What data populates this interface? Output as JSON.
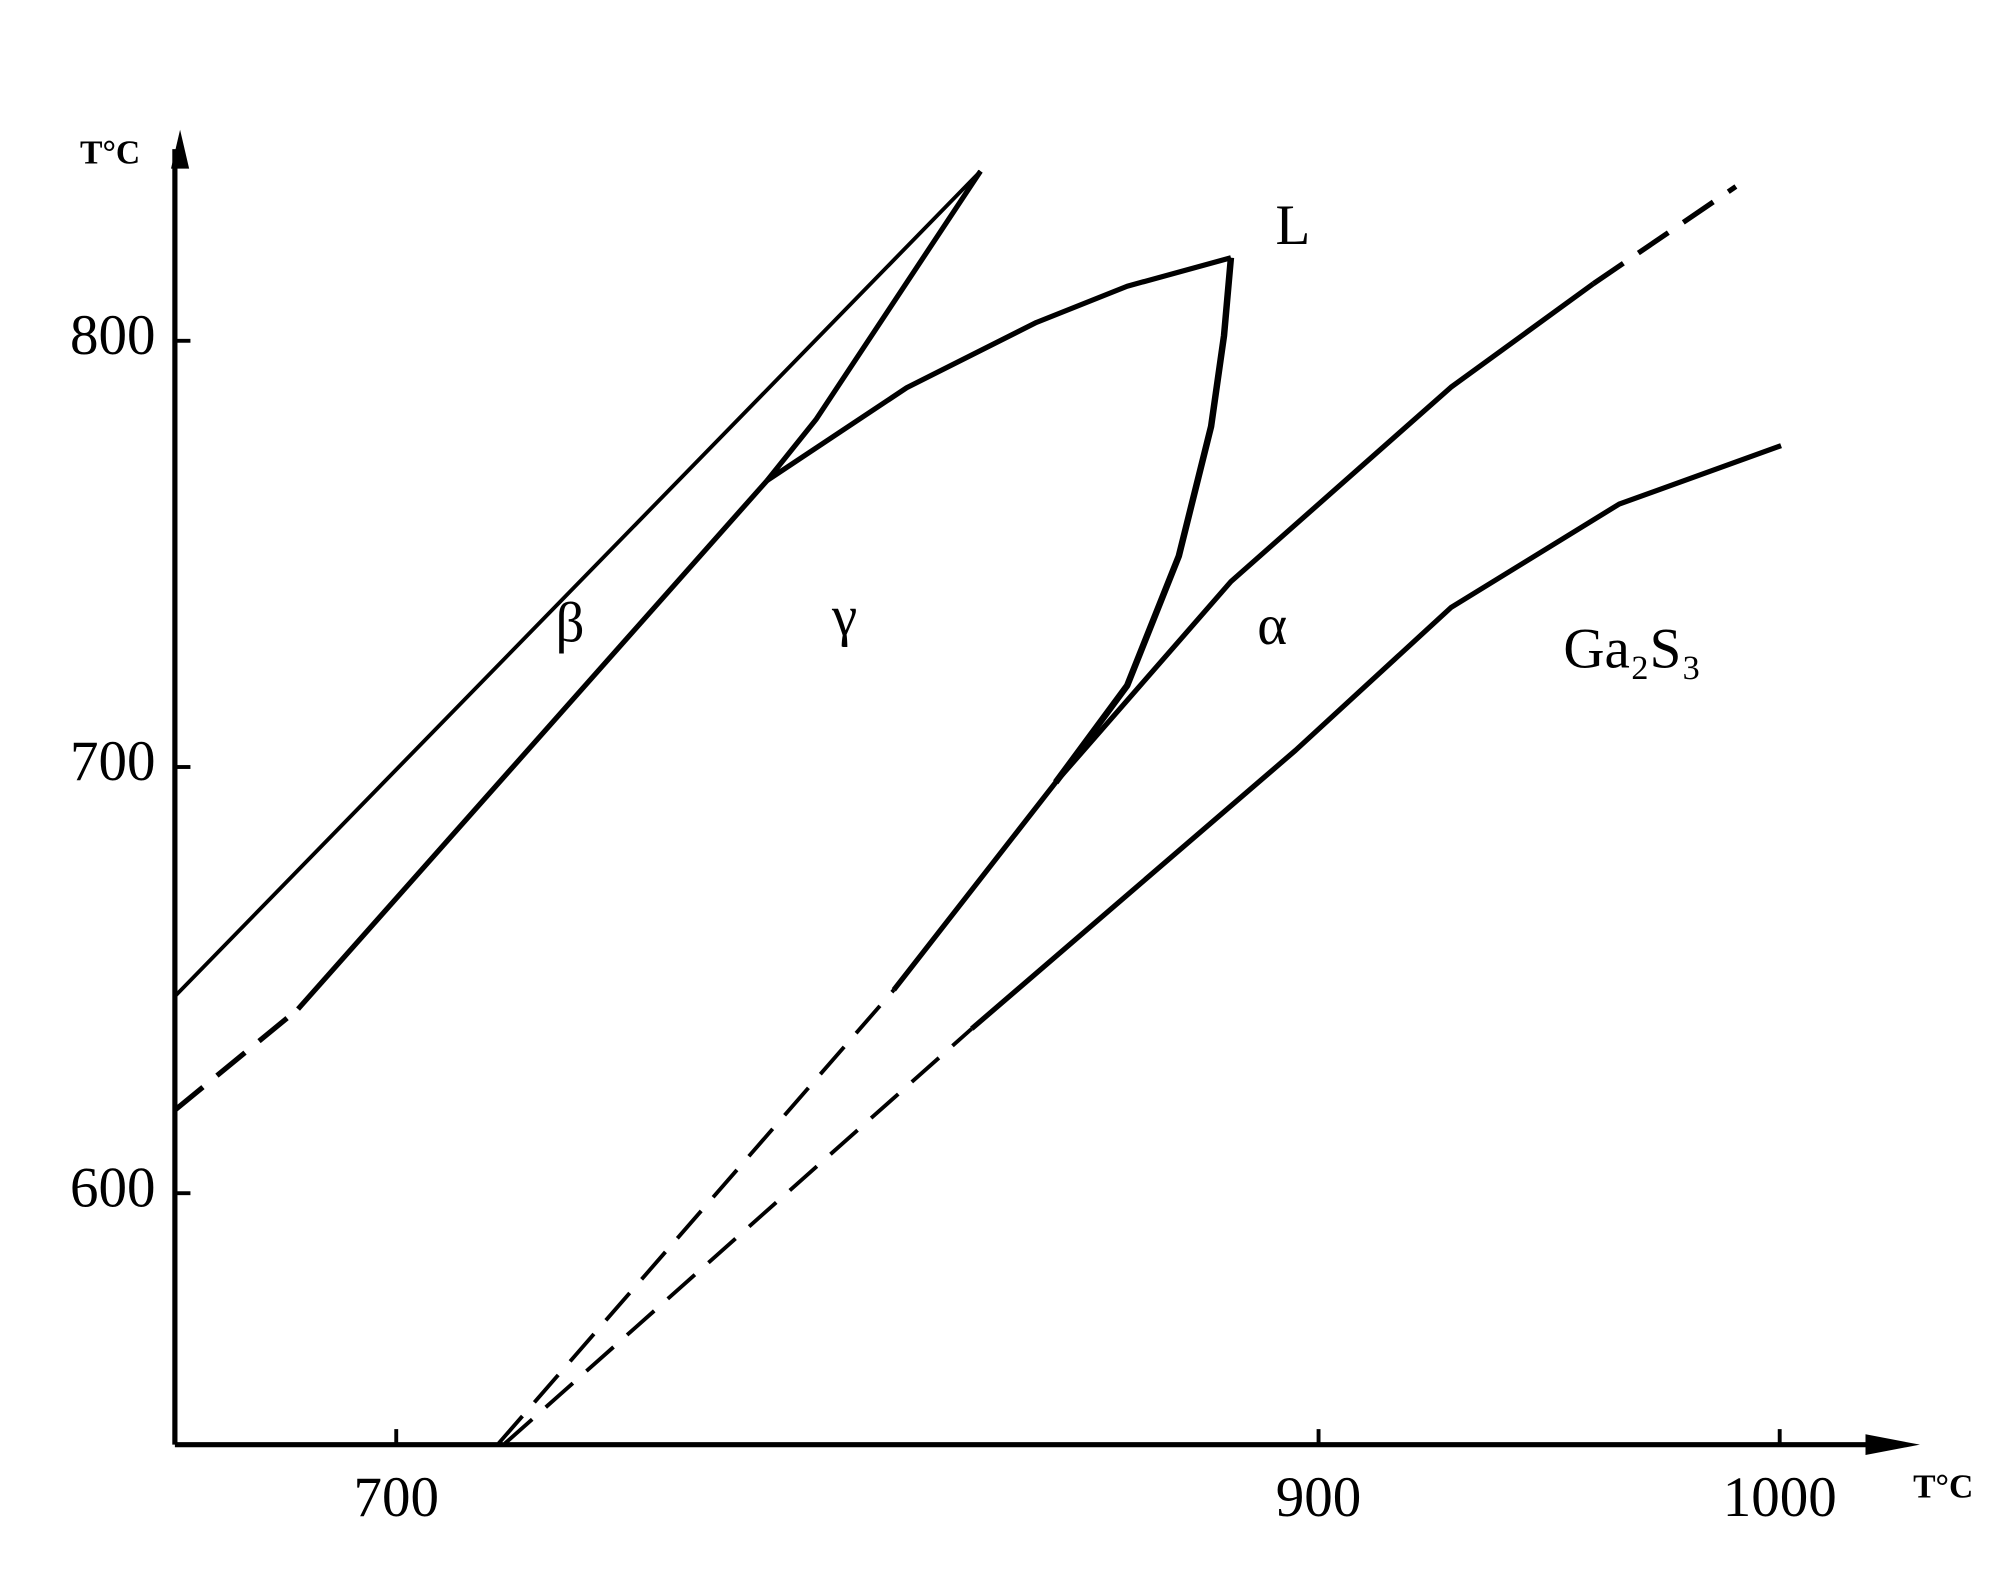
{
  "chart_data": {
    "type": "line",
    "x_label": "T°C",
    "y_label": "T°C",
    "xlim": [
      652,
      1029
    ],
    "ylim": [
      541,
      848
    ],
    "xticks": [
      700,
      900,
      1000
    ],
    "yticks": [
      600,
      700,
      800
    ],
    "grid": false,
    "color": "#000000",
    "series": [
      {
        "style": "solid",
        "width": 3,
        "x": [
          652,
          826.7
        ],
        "values": [
          646.2,
          839.8
        ]
      },
      {
        "style": "dashed",
        "width": 4,
        "x": [
          652,
          678.7
        ],
        "values": [
          619.5,
          643.2
        ]
      },
      {
        "style": "solid",
        "width": 4,
        "x": [
          678.7,
          780.4
        ],
        "values": [
          643.2,
          767.2
        ]
      },
      {
        "style": "solid",
        "width": 4,
        "x": [
          780.4,
          791,
          826.7
        ],
        "values": [
          767.2,
          781.5,
          839.8
        ]
      },
      {
        "style": "solid",
        "width": 4,
        "x": [
          780.4,
          810.7,
          838.8,
          858.5,
          881
        ],
        "values": [
          767.2,
          789,
          804.3,
          812.8,
          819.5
        ]
      },
      {
        "style": "solid",
        "width": 5,
        "x": [
          881,
          879.5,
          876.7,
          869.7,
          858.5,
          843
        ],
        "values": [
          819.5,
          801.2,
          779.9,
          749.5,
          719.1,
          696.4
        ]
      },
      {
        "style": "dashed",
        "width": 3,
        "x": [
          722.2,
          807.9
        ],
        "values": [
          541.3,
          647.7
        ]
      },
      {
        "style": "solid",
        "width": 4,
        "x": [
          807.9,
          843,
          881,
          928.7,
          959.6
        ],
        "values": [
          647.7,
          696.4,
          743.5,
          789.1,
          813.4
        ]
      },
      {
        "style": "dashed",
        "width": 4,
        "x": [
          959.6,
          990.5
        ],
        "values": [
          813.4,
          836.2
        ]
      },
      {
        "style": "dashed",
        "width": 3,
        "x": [
          723.6,
          824.8
        ],
        "values": [
          541.3,
          638.6
        ]
      },
      {
        "style": "solid",
        "width": 4,
        "x": [
          824.8,
          895,
          928.7,
          965.2,
          1000.3
        ],
        "values": [
          638.6,
          703.9,
          737.4,
          761.7,
          775.4
        ]
      }
    ],
    "annotations": [
      "β",
      "γ",
      "L",
      "α",
      "Ga₂S₃"
    ]
  }
}
